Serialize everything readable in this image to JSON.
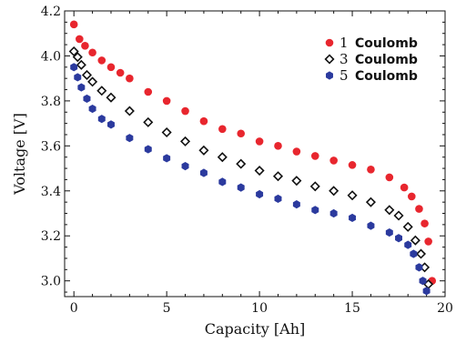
{
  "chart_data": {
    "type": "scatter",
    "title": "",
    "xlabel": "Capacity [Ah]",
    "ylabel": "Voltage [V]",
    "xlim": [
      -0.5,
      20
    ],
    "ylim": [
      2.93,
      4.2
    ],
    "xticks": [
      0,
      5,
      10,
      15,
      20
    ],
    "yticks": [
      3.0,
      3.2,
      3.4,
      3.6,
      3.8,
      4.0,
      4.2
    ],
    "xtick_labels": [
      "0",
      "5",
      "10",
      "15",
      "20"
    ],
    "ytick_labels": [
      "3.0",
      "3.2",
      "3.4",
      "3.6",
      "3.8",
      "4.0",
      "4.2"
    ],
    "grid": false,
    "legend_position": "top-right",
    "series": [
      {
        "legend_number": "1",
        "legend_word": "Coulomb",
        "marker": "circle-filled",
        "color": "#e8262e",
        "x": [
          0,
          0.3,
          0.6,
          1,
          1.5,
          2,
          2.5,
          3,
          4,
          5,
          6,
          7,
          8,
          9,
          10,
          11,
          12,
          13,
          14,
          15,
          16,
          17,
          17.8,
          18.2,
          18.6,
          18.9,
          19.1,
          19.3
        ],
        "y": [
          4.14,
          4.075,
          4.045,
          4.015,
          3.98,
          3.95,
          3.925,
          3.9,
          3.84,
          3.8,
          3.755,
          3.71,
          3.675,
          3.655,
          3.62,
          3.6,
          3.575,
          3.555,
          3.535,
          3.515,
          3.495,
          3.46,
          3.415,
          3.375,
          3.32,
          3.255,
          3.175,
          3.0
        ]
      },
      {
        "legend_number": "3",
        "legend_word": "Coulomb",
        "marker": "diamond-open",
        "color": "#111111",
        "x": [
          0,
          0.2,
          0.4,
          0.7,
          1,
          1.5,
          2,
          3,
          4,
          5,
          6,
          7,
          8,
          9,
          10,
          11,
          12,
          13,
          14,
          15,
          16,
          17,
          17.5,
          18,
          18.4,
          18.7,
          18.9,
          19.1
        ],
        "y": [
          4.02,
          3.995,
          3.96,
          3.915,
          3.885,
          3.845,
          3.815,
          3.755,
          3.705,
          3.66,
          3.62,
          3.58,
          3.55,
          3.52,
          3.49,
          3.465,
          3.445,
          3.42,
          3.4,
          3.38,
          3.35,
          3.315,
          3.29,
          3.24,
          3.18,
          3.12,
          3.06,
          2.985
        ]
      },
      {
        "legend_number": "5",
        "legend_word": "Coulomb",
        "marker": "hexagon-filled",
        "color": "#2b3a9e",
        "x": [
          0,
          0.2,
          0.4,
          0.7,
          1,
          1.5,
          2,
          3,
          4,
          5,
          6,
          7,
          8,
          9,
          10,
          11,
          12,
          13,
          14,
          15,
          16,
          17,
          17.5,
          18,
          18.3,
          18.6,
          18.8,
          19
        ],
        "y": [
          3.95,
          3.905,
          3.86,
          3.81,
          3.765,
          3.72,
          3.695,
          3.635,
          3.585,
          3.545,
          3.51,
          3.48,
          3.44,
          3.415,
          3.385,
          3.365,
          3.34,
          3.315,
          3.3,
          3.28,
          3.245,
          3.215,
          3.19,
          3.16,
          3.12,
          3.06,
          3.0,
          2.955
        ]
      }
    ]
  }
}
